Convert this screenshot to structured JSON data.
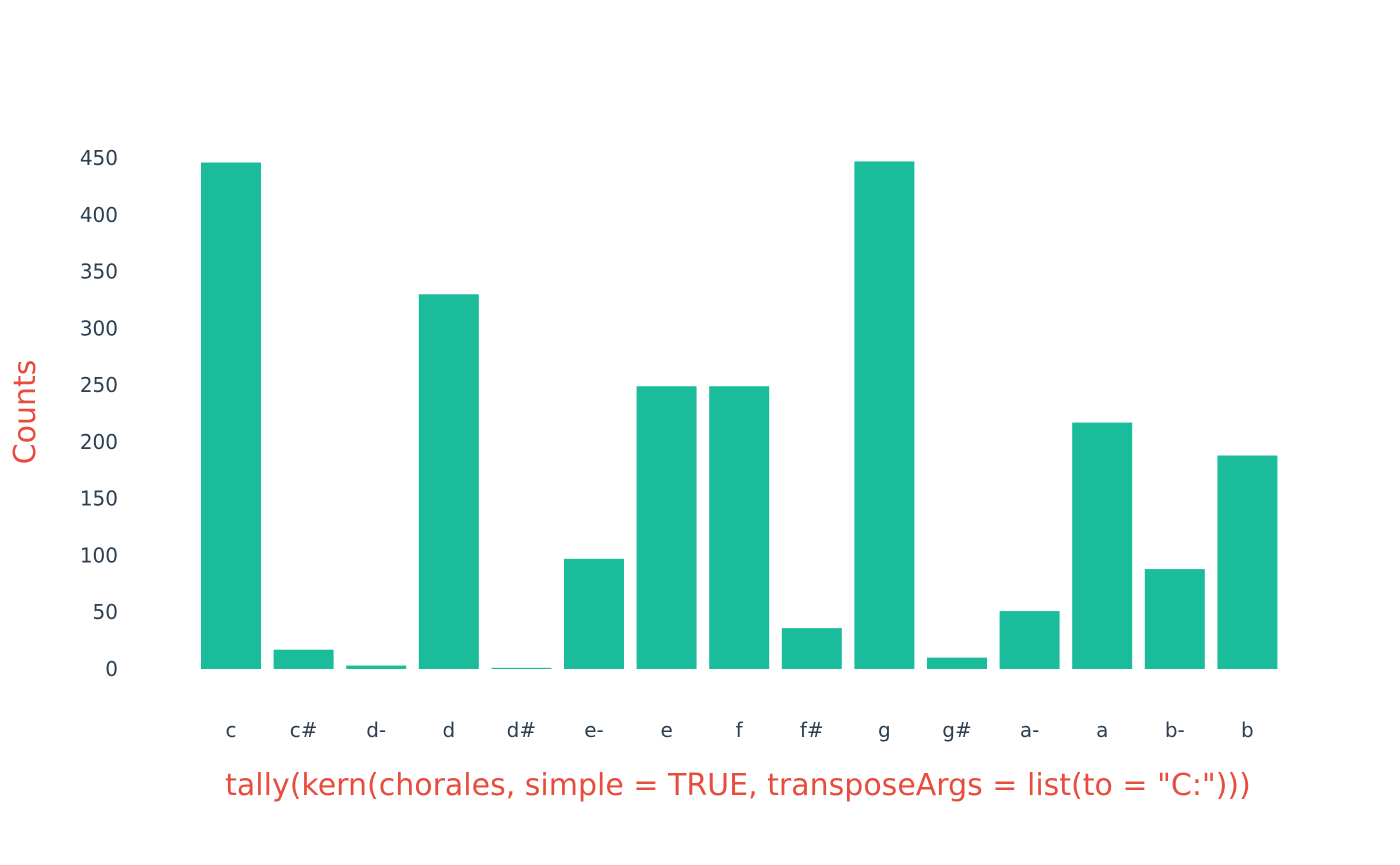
{
  "chart_data": {
    "type": "bar",
    "title": "",
    "xlabel": "tally(kern(chorales, simple = TRUE, transposeArgs = list(to = \"C:\")))",
    "ylabel": "Counts",
    "categories": [
      "c",
      "c#",
      "d-",
      "d",
      "d#",
      "e-",
      "e",
      "f",
      "f#",
      "g",
      "g#",
      "a-",
      "a",
      "b-",
      "b"
    ],
    "values": [
      446,
      17,
      3,
      330,
      1,
      97,
      249,
      249,
      36,
      447,
      10,
      51,
      217,
      88,
      188
    ],
    "ylim": [
      0,
      450
    ],
    "yticks": [
      0,
      50,
      100,
      150,
      200,
      250,
      300,
      350,
      400,
      450
    ],
    "grid": false,
    "legend": "none",
    "colors": {
      "bar": "#1abc9c",
      "axis_title": "#e74c3c",
      "tick_text": "#2c3e50"
    }
  }
}
